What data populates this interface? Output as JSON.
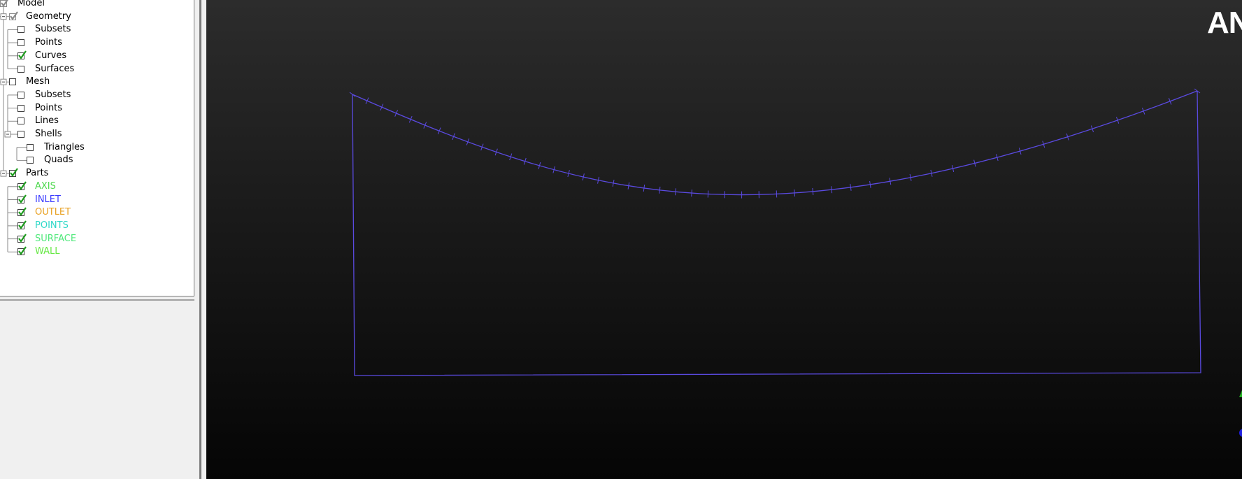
{
  "tree": {
    "model": {
      "label": "Model",
      "state": "grey-checked"
    },
    "geometry": {
      "label": "Geometry",
      "state": "grey-checked",
      "children": [
        {
          "label": "Subsets",
          "state": "unchecked",
          "color": "#000000"
        },
        {
          "label": "Points",
          "state": "unchecked",
          "color": "#000000"
        },
        {
          "label": "Curves",
          "state": "checked",
          "color": "#000000"
        },
        {
          "label": "Surfaces",
          "state": "unchecked",
          "color": "#000000"
        }
      ]
    },
    "mesh": {
      "label": "Mesh",
      "state": "unchecked",
      "children": [
        {
          "label": "Subsets",
          "state": "unchecked",
          "color": "#000000"
        },
        {
          "label": "Points",
          "state": "unchecked",
          "color": "#000000"
        },
        {
          "label": "Lines",
          "state": "unchecked",
          "color": "#000000"
        }
      ],
      "shells": {
        "label": "Shells",
        "state": "unchecked",
        "children": [
          {
            "label": "Triangles",
            "state": "unchecked",
            "color": "#000000"
          },
          {
            "label": "Quads",
            "state": "unchecked",
            "color": "#000000"
          }
        ]
      }
    },
    "parts": {
      "label": "Parts",
      "state": "checked",
      "children": [
        {
          "label": "AXIS",
          "state": "checked",
          "color": "#4fd84f"
        },
        {
          "label": "INLET",
          "state": "checked",
          "color": "#3a3aff"
        },
        {
          "label": "OUTLET",
          "state": "checked",
          "color": "#e8a020"
        },
        {
          "label": "POINTS",
          "state": "checked",
          "color": "#2fd8c8"
        },
        {
          "label": "SURFACE",
          "state": "checked",
          "color": "#4fe87a"
        },
        {
          "label": "WALL",
          "state": "checked",
          "color": "#66e844"
        }
      ]
    }
  },
  "viewport": {
    "brand_text": "AN",
    "curve_color": "#5a4ae0",
    "background_top": "#2c2c2c",
    "background_bottom": "#050505"
  },
  "colors": {
    "check_green": "#1c9a1c",
    "check_grey": "#8a8a8a",
    "triad_green": "#20b020",
    "triad_blue": "#2020e0"
  }
}
